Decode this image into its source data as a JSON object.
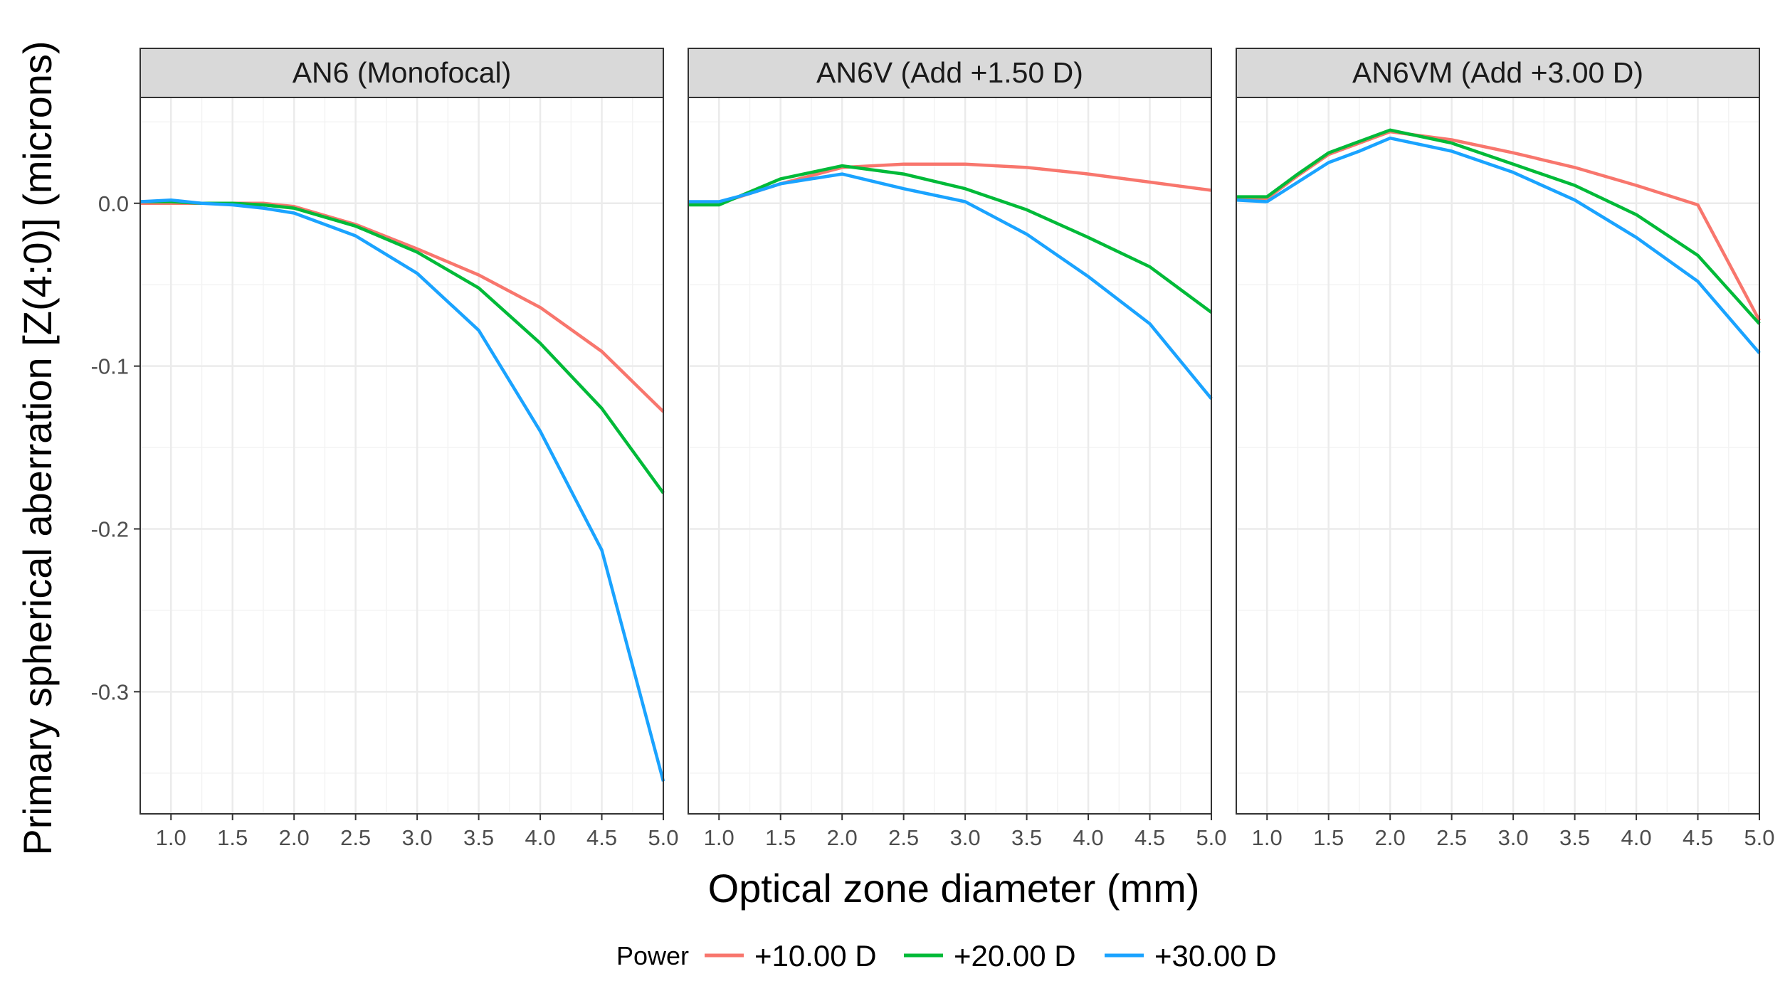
{
  "chart_data": {
    "type": "line",
    "title": "",
    "xlabel": "Optical zone diameter (mm)",
    "ylabel": "Primary spherical aberration [Z(4:0)] (microns)",
    "x": [
      0.75,
      1.0,
      1.25,
      1.5,
      1.75,
      2.0,
      2.5,
      3.0,
      3.5,
      4.0,
      4.5,
      5.0
    ],
    "xlim": [
      0.75,
      5.0
    ],
    "ylim": [
      -0.375,
      0.065
    ],
    "xticks": [
      1.0,
      1.5,
      2.0,
      2.5,
      3.0,
      3.5,
      4.0,
      4.5,
      5.0
    ],
    "xtick_labels": [
      "1.0",
      "1.5",
      "2.0",
      "2.5",
      "3.0",
      "3.5",
      "4.0",
      "4.5",
      "5.0"
    ],
    "yticks": [
      0.0,
      -0.1,
      -0.2,
      -0.3
    ],
    "ytick_labels": [
      "0.0",
      "-0.1",
      "-0.2",
      "-0.3"
    ],
    "legend": {
      "title": "Power",
      "position": "bottom",
      "entries": [
        {
          "name": "+10.00 D",
          "color": "#F8766D"
        },
        {
          "name": "+20.00 D",
          "color": "#00BA38"
        },
        {
          "name": "+30.00 D",
          "color": "#1AA3FF"
        }
      ]
    },
    "panels": [
      {
        "title": "AN6 (Monofocal)",
        "series": [
          {
            "name": "+10.00 D",
            "values": [
              0.0,
              0.0,
              0.0,
              0.0,
              0.0,
              -0.002,
              -0.013,
              -0.028,
              -0.044,
              -0.064,
              -0.091,
              -0.128
            ]
          },
          {
            "name": "+20.00 D",
            "values": [
              0.001,
              0.001,
              0.0,
              0.0,
              -0.001,
              -0.003,
              -0.014,
              -0.03,
              -0.052,
              -0.086,
              -0.126,
              -0.178
            ]
          },
          {
            "name": "+30.00 D",
            "values": [
              0.001,
              0.002,
              0.0,
              -0.001,
              -0.003,
              -0.006,
              -0.02,
              -0.043,
              -0.078,
              -0.14,
              -0.213,
              -0.355
            ]
          }
        ]
      },
      {
        "title": "AN6V (Add +1.50 D)",
        "series": [
          {
            "name": "+10.00 D",
            "values": [
              0.0,
              0.0,
              0.006,
              0.012,
              0.017,
              0.022,
              0.024,
              0.024,
              0.022,
              0.018,
              0.013,
              0.008
            ]
          },
          {
            "name": "+20.00 D",
            "values": [
              -0.001,
              -0.001,
              0.007,
              0.015,
              0.019,
              0.023,
              0.018,
              0.009,
              -0.004,
              -0.021,
              -0.039,
              -0.067
            ]
          },
          {
            "name": "+30.00 D",
            "values": [
              0.001,
              0.001,
              0.006,
              0.012,
              0.015,
              0.018,
              0.009,
              0.001,
              -0.019,
              -0.045,
              -0.074,
              -0.12
            ]
          }
        ]
      },
      {
        "title": "AN6VM (Add +3.00 D)",
        "series": [
          {
            "name": "+10.00 D",
            "values": [
              0.003,
              0.003,
              0.017,
              0.03,
              0.037,
              0.044,
              0.039,
              0.031,
              0.022,
              0.011,
              -0.001,
              -0.072
            ]
          },
          {
            "name": "+20.00 D",
            "values": [
              0.004,
              0.004,
              0.018,
              0.031,
              0.038,
              0.045,
              0.037,
              0.024,
              0.011,
              -0.007,
              -0.032,
              -0.074
            ]
          },
          {
            "name": "+30.00 D",
            "values": [
              0.002,
              0.001,
              0.013,
              0.025,
              0.032,
              0.04,
              0.032,
              0.019,
              0.002,
              -0.021,
              -0.048,
              -0.092
            ]
          }
        ]
      }
    ]
  }
}
